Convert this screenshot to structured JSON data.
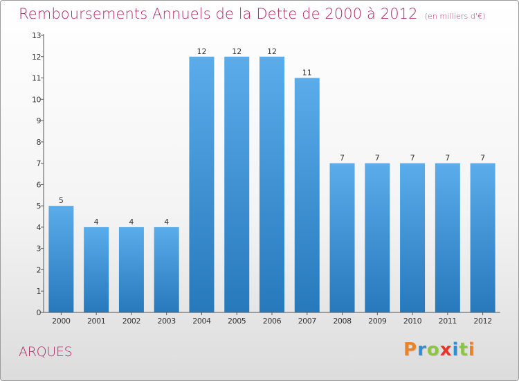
{
  "title": "Remboursements Annuels de la Dette de 2000 à 2012",
  "subtitle": "(en milliers d'€)",
  "commune": "ARQUES",
  "brand": {
    "letters": [
      "P",
      "r",
      "o",
      "x",
      "i",
      "t",
      "i"
    ],
    "colors": [
      "#e8832a",
      "#2e8fd0",
      "#8cc63f",
      "#e8352a",
      "#2e8fd0",
      "#8cc63f",
      "#e8832a"
    ]
  },
  "colors": {
    "bar_top": "#5aacea",
    "bar_bottom": "#2679bb",
    "title": "#b5276b"
  },
  "chart_data": {
    "type": "bar",
    "categories": [
      "2000",
      "2001",
      "2002",
      "2003",
      "2004",
      "2005",
      "2006",
      "2007",
      "2008",
      "2009",
      "2010",
      "2011",
      "2012"
    ],
    "values": [
      5,
      4,
      4,
      4,
      12,
      12,
      12,
      11,
      7,
      7,
      7,
      7,
      7
    ],
    "data_labels": [
      "5",
      "4",
      "4",
      "4",
      "12",
      "12",
      "12",
      "11",
      "7",
      "7",
      "7",
      "7",
      "7"
    ],
    "yticks": [
      "0",
      "1",
      "2",
      "3",
      "4",
      "5",
      "6",
      "7",
      "8",
      "9",
      "10",
      "11",
      "12",
      "13"
    ],
    "ylim": [
      0,
      13
    ],
    "xlabel": "",
    "ylabel": "",
    "grid": false,
    "legend": "none"
  }
}
